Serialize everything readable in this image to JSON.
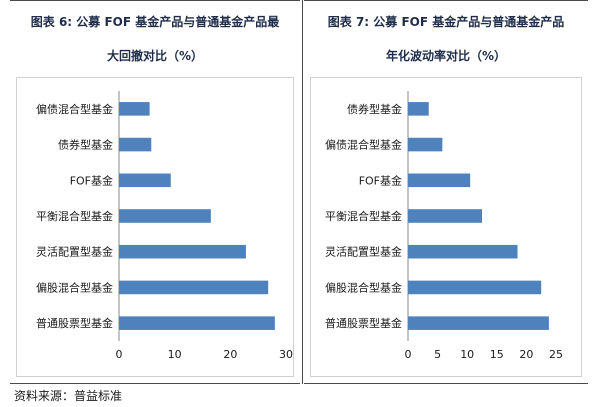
{
  "chart_data": [
    {
      "type": "bar",
      "orientation": "horizontal",
      "title": "图表 6: 公募 FOF 基金产品与普通基金产品最大回撤对比（%）",
      "title_lines": [
        "图表 6: 公募 FOF 基金产品与普通基金产品最",
        "大回撤对比（%）"
      ],
      "categories": [
        "偏债混合型基金",
        "债券型基金",
        "FOF基金",
        "平衡混合型基金",
        "灵活配置型基金",
        "偏股混合型基金",
        "普通股票型基金"
      ],
      "values": [
        5.5,
        5.8,
        9.3,
        16.5,
        22.8,
        26.8,
        28.0
      ],
      "xlim": [
        0,
        30
      ],
      "xticks": [
        "0",
        "10",
        "20",
        "30"
      ],
      "bar_color": "#4f81bd",
      "grid": false,
      "xlabel": "",
      "ylabel": ""
    },
    {
      "type": "bar",
      "orientation": "horizontal",
      "title": "图表 7: 公募 FOF 基金产品与普通基金产品年化波动率对比（%）",
      "title_lines": [
        "图表 7: 公募 FOF 基金产品与普通基金产品",
        "年化波动率对比（%）"
      ],
      "categories": [
        "债券型基金",
        "偏债混合型基金",
        "FOF基金",
        "平衡混合型基金",
        "灵活配置型基金",
        "偏股混合型基金",
        "普通股票型基金"
      ],
      "values": [
        3.5,
        5.8,
        10.5,
        12.5,
        18.5,
        22.5,
        23.8
      ],
      "xlim": [
        0,
        25
      ],
      "xticks": [
        "0",
        "5",
        "10",
        "15",
        "20",
        "25"
      ],
      "bar_color": "#4f81bd",
      "grid": false,
      "xlabel": "",
      "ylabel": ""
    }
  ],
  "source": "资料来源：普益标准"
}
